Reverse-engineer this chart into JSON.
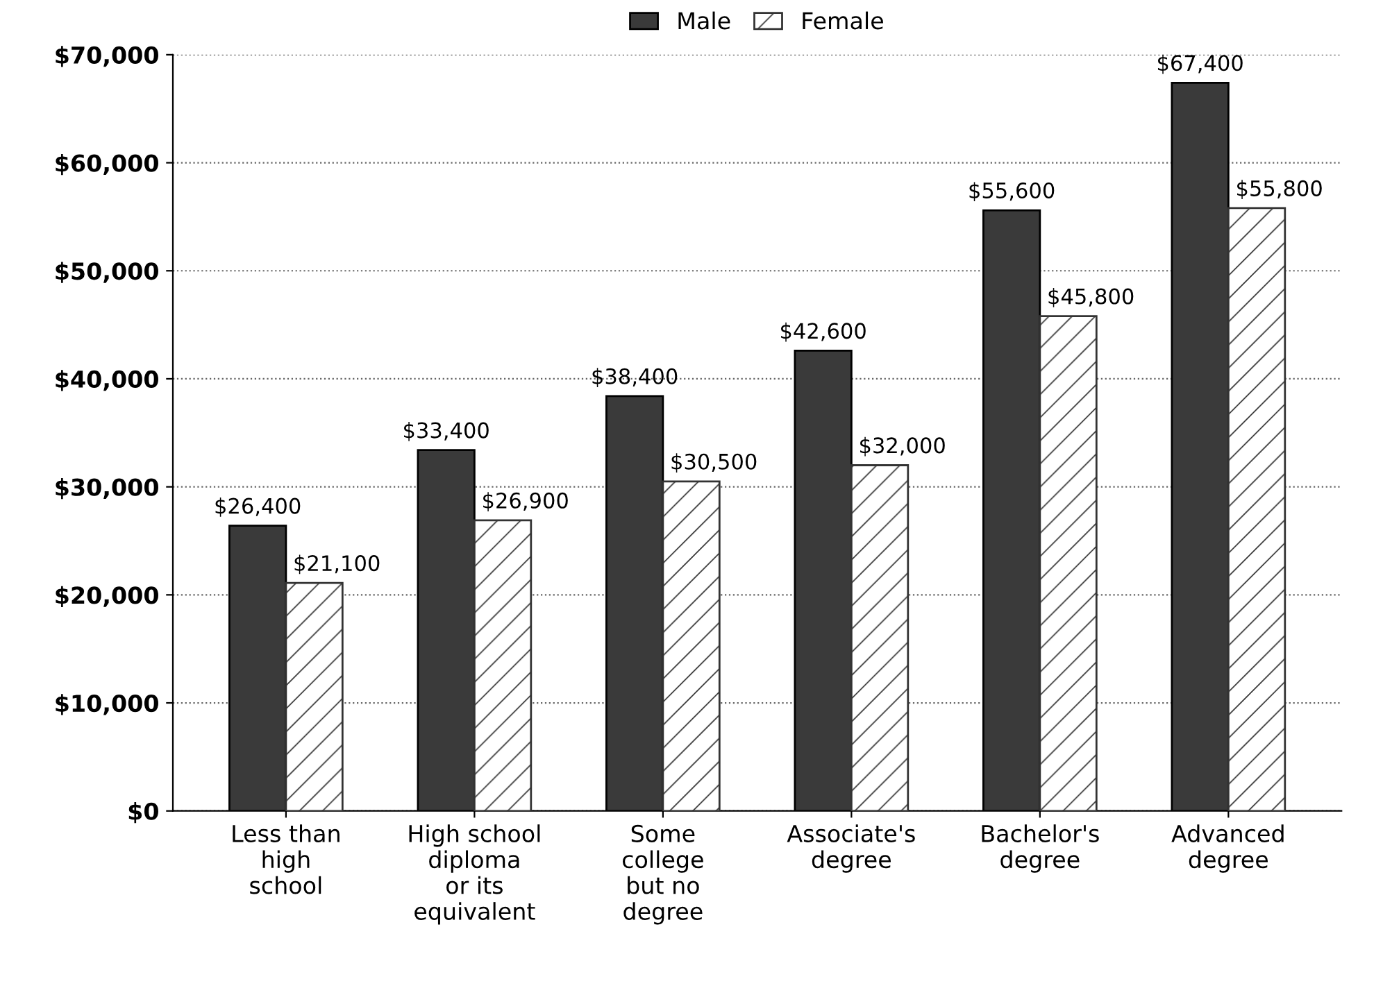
{
  "chart_data": {
    "type": "bar",
    "categories": [
      "Less than\nhigh\nschool",
      "High school\ndiploma\nor its\nequivalent",
      "Some\ncollege\nbut no\ndegree",
      "Associate's\ndegree",
      "Bachelor's\ndegree",
      "Advanced\ndegree"
    ],
    "series": [
      {
        "name": "Male",
        "color": "#3a3a3a",
        "values": [
          26400,
          33400,
          38400,
          42600,
          55600,
          67400
        ],
        "value_labels": [
          "$26,400",
          "$33,400",
          "$38,400",
          "$42,600",
          "$55,600",
          "$67,400"
        ]
      },
      {
        "name": "Female",
        "color": "#333333",
        "values": [
          21100,
          26900,
          30500,
          32000,
          45800,
          55800
        ],
        "value_labels": [
          "$21,100",
          "$26,900",
          "$30,500",
          "$32,000",
          "$45,800",
          "$55,800"
        ]
      }
    ],
    "ylim": [
      0,
      70000
    ],
    "yticks": [
      {
        "value": 0,
        "label": "$0"
      },
      {
        "value": 10000,
        "label": "$10,000"
      },
      {
        "value": 20000,
        "label": "$20,000"
      },
      {
        "value": 30000,
        "label": "$30,000"
      },
      {
        "value": 40000,
        "label": "$40,000"
      },
      {
        "value": 50000,
        "label": "$50,000"
      },
      {
        "value": 60000,
        "label": "$60,000"
      },
      {
        "value": 70000,
        "label": "$70,000"
      }
    ],
    "grid": "y",
    "legend": "top"
  }
}
